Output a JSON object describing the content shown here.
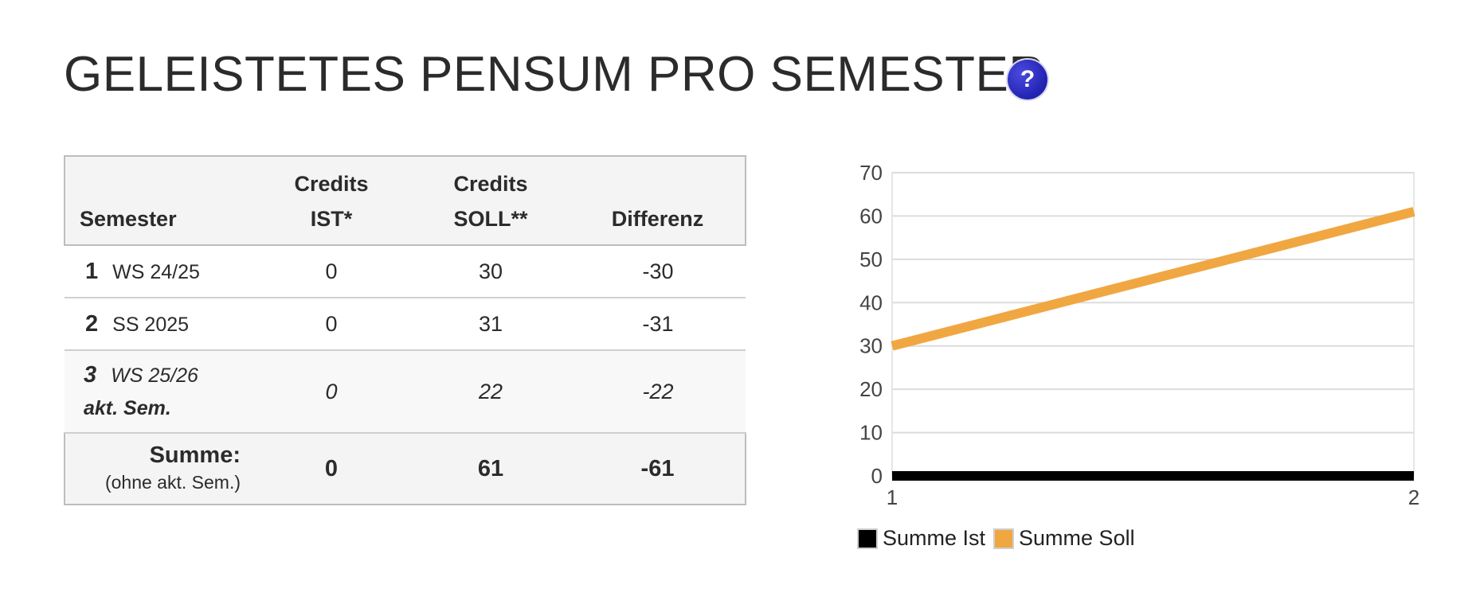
{
  "page": {
    "title": "GELEISTETES PENSUM PRO SEMESTER",
    "help_label": "?"
  },
  "table": {
    "headers": {
      "semester": "Semester",
      "ist_line1": "Credits",
      "ist_line2": "IST*",
      "soll_line1": "Credits",
      "soll_line2": "SOLL**",
      "diff": "Differenz"
    },
    "rows": [
      {
        "no": "1",
        "name": "WS 24/25",
        "ist": "0",
        "soll": "30",
        "diff": "-30"
      },
      {
        "no": "2",
        "name": "SS 2025",
        "ist": "0",
        "soll": "31",
        "diff": "-31"
      },
      {
        "no": "3",
        "name": "WS 25/26",
        "note": "akt. Sem.",
        "ist": "0",
        "soll": "22",
        "diff": "-22"
      }
    ],
    "sum": {
      "label": "Summe:",
      "sublabel": "(ohne akt. Sem.)",
      "ist": "0",
      "soll": "61",
      "diff": "-61"
    },
    "negative_color": "#e2231a"
  },
  "chart_data": {
    "type": "line",
    "x": [
      1,
      2
    ],
    "series": [
      {
        "name": "Summe Ist",
        "values": [
          0,
          0
        ],
        "color": "#000000"
      },
      {
        "name": "Summe Soll",
        "values": [
          30,
          61
        ],
        "color": "#f0a742"
      }
    ],
    "xticks": [
      "1",
      "2"
    ],
    "yticks": [
      "0",
      "10",
      "20",
      "30",
      "40",
      "50",
      "60",
      "70"
    ],
    "ylim": [
      0,
      70
    ],
    "grid": true,
    "legend_placement": "bottom-left"
  }
}
